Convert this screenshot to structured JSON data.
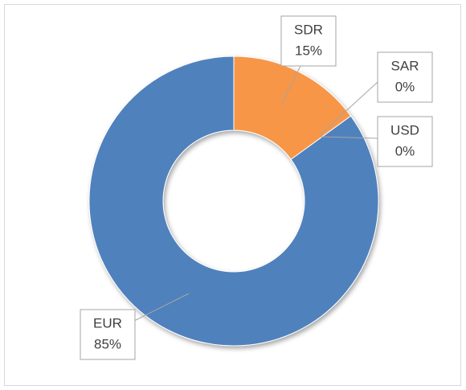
{
  "chart_data": {
    "type": "donut",
    "categories": [
      "SDR",
      "SAR",
      "USD",
      "EUR"
    ],
    "values": [
      15,
      0,
      0,
      85
    ],
    "value_labels": [
      "15%",
      "0%",
      "0%",
      "85%"
    ],
    "colors": [
      "#f79646",
      "#a5a5a5",
      "#9bbb59",
      "#4f81bd"
    ]
  }
}
